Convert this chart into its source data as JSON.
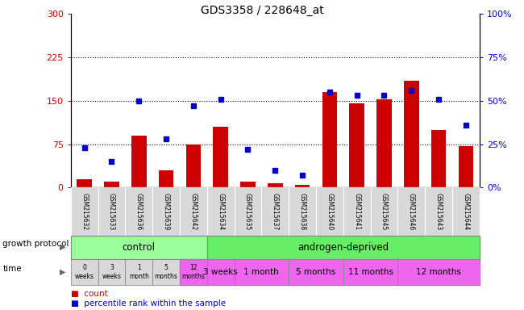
{
  "title": "GDS3358 / 228648_at",
  "samples": [
    "GSM215632",
    "GSM215633",
    "GSM215636",
    "GSM215639",
    "GSM215642",
    "GSM215634",
    "GSM215635",
    "GSM215637",
    "GSM215638",
    "GSM215640",
    "GSM215641",
    "GSM215645",
    "GSM215646",
    "GSM215643",
    "GSM215644"
  ],
  "bar_values": [
    15,
    10,
    90,
    30,
    75,
    105,
    10,
    8,
    5,
    165,
    145,
    152,
    185,
    100,
    72
  ],
  "dot_values_pct": [
    23,
    15,
    50,
    28,
    47,
    51,
    22,
    10,
    7,
    55,
    53,
    53,
    56,
    51,
    36
  ],
  "bar_color": "#CC0000",
  "dot_color": "#0000CC",
  "ylim_left": [
    0,
    300
  ],
  "ylim_right": [
    0,
    100
  ],
  "yticks_left": [
    0,
    75,
    150,
    225,
    300
  ],
  "yticks_right": [
    0,
    25,
    50,
    75,
    100
  ],
  "hlines": [
    75,
    150,
    225
  ],
  "control_indices": [
    0,
    1,
    2,
    3,
    4
  ],
  "androgen_indices": [
    5,
    6,
    7,
    8,
    9,
    10,
    11,
    12,
    13,
    14
  ],
  "protocol_control_label": "control",
  "protocol_androgen_label": "androgen-deprived",
  "protocol_row_label": "growth protocol",
  "time_row_label": "time",
  "time_groups_control": [
    {
      "label": "0\nweeks",
      "indices": [
        0
      ]
    },
    {
      "label": "3\nweeks",
      "indices": [
        1
      ]
    },
    {
      "label": "1\nmonth",
      "indices": [
        2
      ]
    },
    {
      "label": "5\nmonths",
      "indices": [
        3
      ]
    },
    {
      "label": "12\nmonths",
      "indices": [
        4
      ]
    }
  ],
  "time_groups_androgen": [
    {
      "label": "3 weeks",
      "indices": [
        5
      ]
    },
    {
      "label": "1 month",
      "indices": [
        6,
        7
      ]
    },
    {
      "label": "5 months",
      "indices": [
        8,
        9
      ]
    },
    {
      "label": "11 months",
      "indices": [
        10,
        11
      ]
    },
    {
      "label": "12 months",
      "indices": [
        12,
        13,
        14
      ]
    }
  ],
  "legend_count_label": "count",
  "legend_pct_label": "percentile rank within the sample",
  "control_bg": "#99FF99",
  "androgen_bg": "#66EE66",
  "time_ctrl_colors": [
    "#d8d8d8",
    "#d8d8d8",
    "#d8d8d8",
    "#d8d8d8",
    "#EE66EE"
  ],
  "time_androgen_bg": "#EE66EE",
  "left_axis_color": "#CC0000",
  "right_axis_color": "#0000CC",
  "xticklabel_bg": "#d8d8d8"
}
